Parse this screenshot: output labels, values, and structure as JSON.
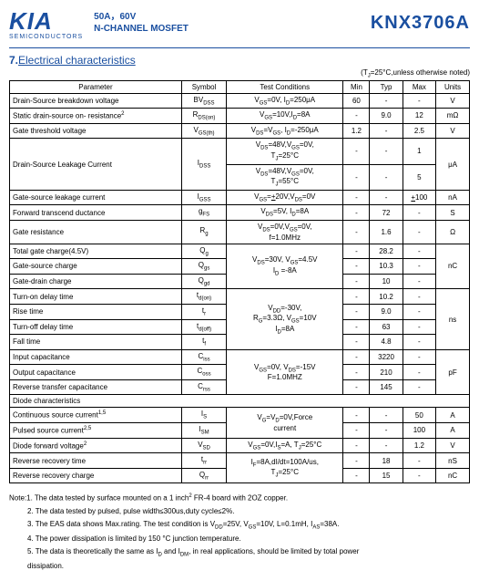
{
  "header": {
    "logo_main": "KIA",
    "logo_sub": "SEMICONDUCTORS",
    "title_line1": "50A，60V",
    "title_line2": "N-CHANNEL MOSFET",
    "part_number": "KNX3706A"
  },
  "section": {
    "num": "7.",
    "title": "Electrical characteristics"
  },
  "cond_note": "(TJ=25°C,unless otherwise noted)",
  "table": {
    "headers": [
      "Parameter",
      "Symbol",
      "Test Conditions",
      "Min",
      "Typ",
      "Max",
      "Units"
    ],
    "rows": [
      {
        "param": "Drain-Source breakdown voltage",
        "symbol": "BVDSS",
        "cond": "VGS=0V, ID=250μA",
        "min": "60",
        "typ": "-",
        "max": "-",
        "units": "V"
      },
      {
        "param": "Static drain-source on- resistance2",
        "symbol": "RDS(on)",
        "cond": "VGS=10V,ID=8A",
        "min": "-",
        "typ": "9.0",
        "max": "12",
        "units": "mΩ"
      },
      {
        "param": "Gate threshold voltage",
        "symbol": "VGS(th)",
        "cond": "VDS=VGS, ID=-250μA",
        "min": "1.2",
        "typ": "-",
        "max": "2.5",
        "units": "V"
      },
      {
        "param": "Drain-Source Leakage Current",
        "symbol": "IDSS",
        "cond": "VDS=48V,VGS=0V, TJ=25°C",
        "min": "-",
        "typ": "-",
        "max": "1",
        "units": "μA"
      },
      {
        "param": "",
        "symbol": "",
        "cond": "VDS=48V,VGS=0V, TJ=55°C",
        "min": "-",
        "typ": "-",
        "max": "5",
        "units": ""
      },
      {
        "param": "Gate-source leakage current",
        "symbol": "IGSS",
        "cond": "VGS=±20V,VDS=0V",
        "min": "-",
        "typ": "-",
        "max": "±100",
        "units": "nA"
      },
      {
        "param": "Forward transcend ductance",
        "symbol": "gFS",
        "cond": "VDS=5V, ID=8A",
        "min": "-",
        "typ": "72",
        "max": "-",
        "units": "S"
      },
      {
        "param": "Gate resistance",
        "symbol": "Rg",
        "cond": "VDS=0V,VGS=0V, f=1.0MHz",
        "min": "-",
        "typ": "1.6",
        "max": "-",
        "units": "Ω"
      },
      {
        "param": "Total gate charge(4.5V)",
        "symbol": "Qg",
        "cond": "VDS=30V, VGS=4.5V ID =-8A",
        "min": "-",
        "typ": "28.2",
        "max": "-",
        "units": "nC"
      },
      {
        "param": "Gate-source charge",
        "symbol": "Qgs",
        "cond": "",
        "min": "-",
        "typ": "10.3",
        "max": "-",
        "units": ""
      },
      {
        "param": "Gate-drain charge",
        "symbol": "Qgd",
        "cond": "",
        "min": "-",
        "typ": "10",
        "max": "-",
        "units": ""
      },
      {
        "param": "Turn-on delay time",
        "symbol": "td(on)",
        "cond": "VDD=-30V, RG=3.3Ω, VGS=10V ID=8A",
        "min": "-",
        "typ": "10.2",
        "max": "-",
        "units": "ns"
      },
      {
        "param": "Rise time",
        "symbol": "tr",
        "cond": "",
        "min": "-",
        "typ": "9.0",
        "max": "-",
        "units": ""
      },
      {
        "param": "Turn-off delay time",
        "symbol": "td(off)",
        "cond": "",
        "min": "-",
        "typ": "63",
        "max": "-",
        "units": ""
      },
      {
        "param": "Fall time",
        "symbol": "tf",
        "cond": "",
        "min": "-",
        "typ": "4.8",
        "max": "-",
        "units": ""
      },
      {
        "param": "Input capacitance",
        "symbol": "Ciss",
        "cond": "VGS=0V, VDS=-15V F=1.0MHZ",
        "min": "-",
        "typ": "3220",
        "max": "-",
        "units": "pF"
      },
      {
        "param": "Output capacitance",
        "symbol": "Coss",
        "cond": "",
        "min": "-",
        "typ": "210",
        "max": "-",
        "units": ""
      },
      {
        "param": "Reverse transfer capacitance",
        "symbol": "Crss",
        "cond": "",
        "min": "-",
        "typ": "145",
        "max": "-",
        "units": ""
      },
      {
        "param": "Diode characteristics",
        "colspan": true
      },
      {
        "param": "Continuous source current1,5",
        "symbol": "IS",
        "cond": "VG=VD=0V,Force current",
        "min": "-",
        "typ": "-",
        "max": "50",
        "units": "A"
      },
      {
        "param": "Pulsed source current2,5",
        "symbol": "ISM",
        "cond": "",
        "min": "-",
        "typ": "-",
        "max": "100",
        "units": "A"
      },
      {
        "param": "Diode forward voltage2",
        "symbol": "VSD",
        "cond": "VGS=0V,IS=A, TJ=25°C",
        "min": "-",
        "typ": "-",
        "max": "1.2",
        "units": "V"
      },
      {
        "param": "Reverse recovery time",
        "symbol": "trr",
        "cond": "IF=8A,dI/dt=100A/us, TJ=25°C",
        "min": "-",
        "typ": "18",
        "max": "-",
        "units": "nS"
      },
      {
        "param": "Reverse recovery charge",
        "symbol": "Qrr",
        "cond": "",
        "min": "-",
        "typ": "15",
        "max": "-",
        "units": "nC"
      }
    ]
  },
  "notes": {
    "n1": "Note:1. The data tested by surface mounted on a 1 inch2 FR-4 board with 2OZ copper.",
    "n2": "2. The data tested by pulsed, pulse width≤300us,duty cycle≤2%.",
    "n3": "3. The EAS data shows Max.rating. The test condition is VDD=25V, VGS=10V, L=0.1mH, IAS=38A.",
    "n4": "4. The power dissipation is limited by 150 °C junction temperature.",
    "n5": "5. The data is theoretically the same as ID and IDM, in real applications, should be limited by total power",
    "n5b": "dissipation."
  }
}
